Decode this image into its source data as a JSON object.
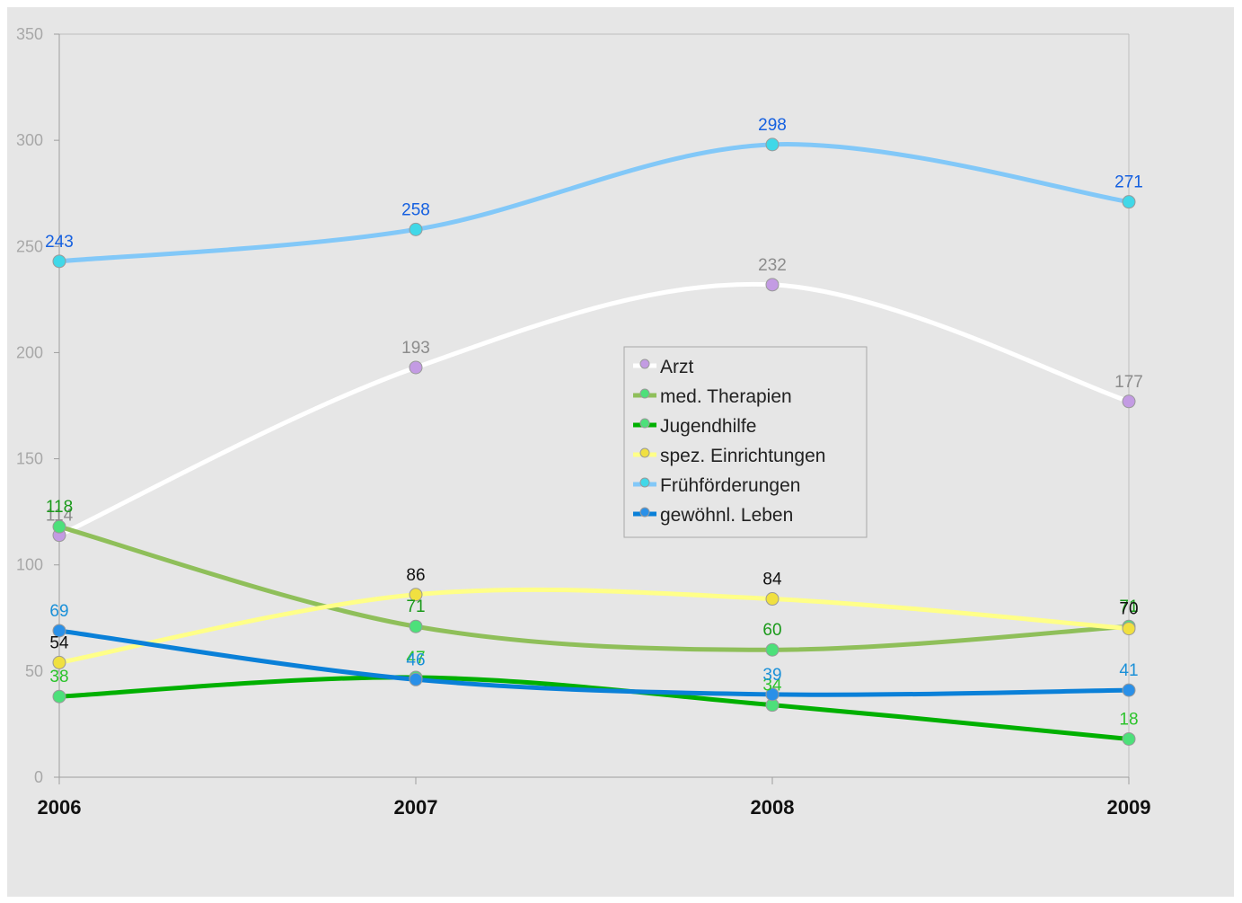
{
  "chart_data": {
    "type": "line",
    "categories": [
      "2006",
      "2007",
      "2008",
      "2009"
    ],
    "ylim": [
      0,
      350
    ],
    "yticks": [
      0,
      50,
      100,
      150,
      200,
      250,
      300,
      350
    ],
    "grid": false,
    "legend_position": "center-right",
    "series": [
      {
        "name": "Arzt",
        "values": [
          114,
          193,
          232,
          177
        ],
        "line_color": "#ffffff",
        "marker_color": "#c39be3",
        "label_color": "#8c8c8c"
      },
      {
        "name": "med. Therapien",
        "values": [
          118,
          71,
          60,
          71
        ],
        "line_color": "#8fbf5a",
        "marker_color": "#4de07a",
        "label_color": "#1a9a1a"
      },
      {
        "name": "Jugendhilfe",
        "values": [
          38,
          47,
          34,
          18
        ],
        "line_color": "#00b000",
        "marker_color": "#4de07a",
        "label_color": "#2bc32b"
      },
      {
        "name": "spez. Einrichtungen",
        "values": [
          54,
          86,
          84,
          70
        ],
        "line_color": "#ffff88",
        "marker_color": "#f0e040",
        "label_color": "#111111"
      },
      {
        "name": "Frühförderungen",
        "values": [
          243,
          258,
          298,
          271
        ],
        "line_color": "#82c8f8",
        "marker_color": "#40d8e8",
        "label_color": "#1560e0"
      },
      {
        "name": "gewöhnl. Leben",
        "values": [
          69,
          46,
          39,
          41
        ],
        "line_color": "#0a80d8",
        "marker_color": "#2a90e8",
        "label_color": "#1a90d8"
      }
    ]
  }
}
